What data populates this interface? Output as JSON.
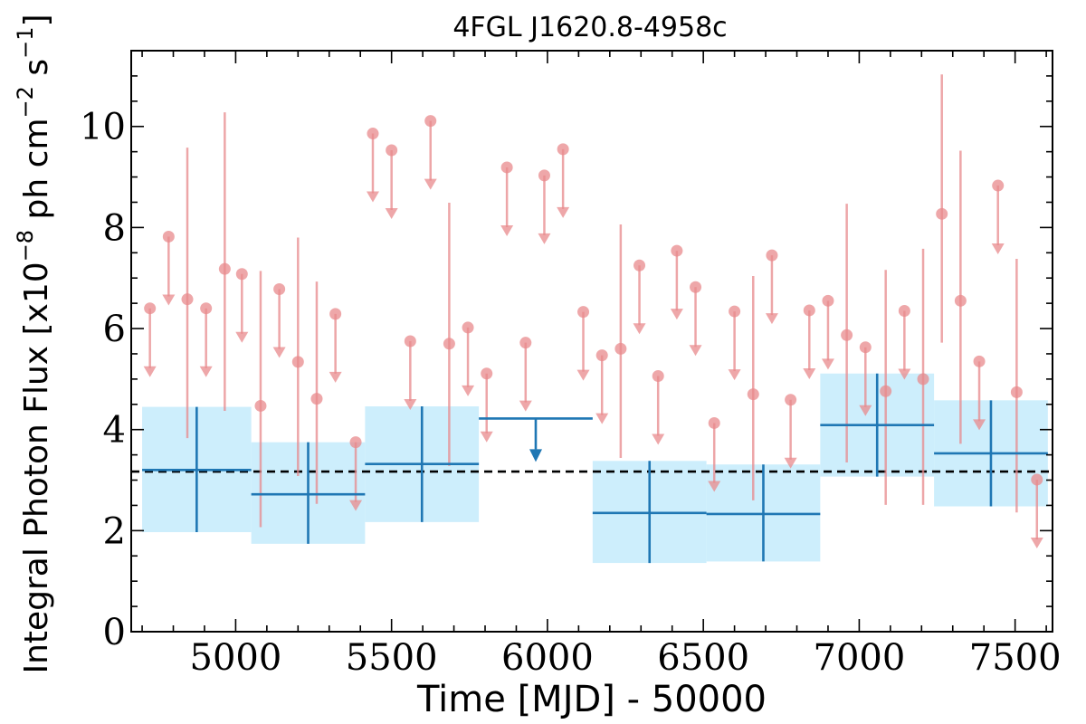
{
  "chart_data": {
    "type": "scatter",
    "title": "4FGL J1620.8-4958c",
    "xlabel": "Time [MJD] - 50000",
    "ylabel": "Integral Photon Flux [x10",
    "ylabel_exp": "−8",
    "ylabel_mid": " ph cm",
    "ylabel_exp2": "−2",
    "ylabel_end": " s",
    "ylabel_exp3": "−1",
    "ylabel_close": "]",
    "xlim": [
      4665,
      7620
    ],
    "ylim": [
      0,
      11.5
    ],
    "xticks": [
      5000,
      5500,
      6000,
      6500,
      7000,
      7500
    ],
    "yticks": [
      0,
      2,
      4,
      6,
      8,
      10
    ],
    "colors": {
      "short_bins": "#e8898c",
      "long_bins": "#1f77b4",
      "long_bins_band": "#cdeefc",
      "mean_line": "#000000"
    },
    "mean_flux": 3.17,
    "long_bins": [
      {
        "x0": 4700,
        "x1": 5050,
        "y": 3.2,
        "lo": 1.97,
        "hi": 4.45
      },
      {
        "x0": 5050,
        "x1": 5415,
        "y": 2.72,
        "lo": 1.74,
        "hi": 3.75
      },
      {
        "x0": 5415,
        "x1": 5780,
        "y": 3.32,
        "lo": 2.17,
        "hi": 4.46
      },
      {
        "x0": 5780,
        "x1": 6145,
        "y": 4.22,
        "ul": true
      },
      {
        "x0": 6145,
        "x1": 6510,
        "y": 2.35,
        "lo": 1.36,
        "hi": 3.38
      },
      {
        "x0": 6510,
        "x1": 6875,
        "y": 2.33,
        "lo": 1.39,
        "hi": 3.31
      },
      {
        "x0": 6875,
        "x1": 7240,
        "y": 4.09,
        "lo": 3.07,
        "hi": 5.11
      },
      {
        "x0": 7240,
        "x1": 7605,
        "y": 3.53,
        "lo": 2.48,
        "hi": 4.58
      }
    ],
    "short_bins": [
      {
        "x": 4725,
        "y": 6.4,
        "ul": true
      },
      {
        "x": 4785,
        "y": 7.82,
        "ul": true
      },
      {
        "x": 4845,
        "y": 6.58,
        "lo": 3.83,
        "hi": 9.58
      },
      {
        "x": 4905,
        "y": 6.4,
        "ul": true
      },
      {
        "x": 4965,
        "y": 7.18,
        "lo": 4.37,
        "hi": 10.28
      },
      {
        "x": 5020,
        "y": 7.08,
        "ul": true
      },
      {
        "x": 5080,
        "y": 4.47,
        "lo": 2.07,
        "hi": 7.14
      },
      {
        "x": 5140,
        "y": 6.78,
        "ul": true
      },
      {
        "x": 5200,
        "y": 5.34,
        "lo": 3.08,
        "hi": 7.8
      },
      {
        "x": 5260,
        "y": 4.61,
        "lo": 2.53,
        "hi": 6.93
      },
      {
        "x": 5320,
        "y": 6.29,
        "ul": true
      },
      {
        "x": 5385,
        "y": 3.75,
        "ul": true
      },
      {
        "x": 5440,
        "y": 9.86,
        "ul": true
      },
      {
        "x": 5500,
        "y": 9.53,
        "ul": true
      },
      {
        "x": 5560,
        "y": 5.75,
        "ul": true
      },
      {
        "x": 5625,
        "y": 10.11,
        "ul": true
      },
      {
        "x": 5685,
        "y": 5.7,
        "lo": 3.28,
        "hi": 8.49
      },
      {
        "x": 5745,
        "y": 6.02,
        "ul": true
      },
      {
        "x": 5805,
        "y": 5.11,
        "ul": true
      },
      {
        "x": 5870,
        "y": 9.19,
        "ul": true
      },
      {
        "x": 5930,
        "y": 5.72,
        "ul": true
      },
      {
        "x": 5990,
        "y": 9.03,
        "ul": true
      },
      {
        "x": 6050,
        "y": 9.55,
        "ul": true
      },
      {
        "x": 6115,
        "y": 6.33,
        "ul": true
      },
      {
        "x": 6175,
        "y": 5.47,
        "ul": true
      },
      {
        "x": 6235,
        "y": 5.6,
        "lo": 3.44,
        "hi": 8.06
      },
      {
        "x": 6295,
        "y": 7.25,
        "ul": true
      },
      {
        "x": 6355,
        "y": 5.06,
        "ul": true
      },
      {
        "x": 6415,
        "y": 7.54,
        "ul": true
      },
      {
        "x": 6475,
        "y": 6.82,
        "ul": true
      },
      {
        "x": 6535,
        "y": 4.13,
        "ul": true
      },
      {
        "x": 6600,
        "y": 6.34,
        "ul": true
      },
      {
        "x": 6660,
        "y": 4.7,
        "lo": 2.6,
        "hi": 7.04
      },
      {
        "x": 6720,
        "y": 7.45,
        "ul": true
      },
      {
        "x": 6780,
        "y": 4.59,
        "ul": true
      },
      {
        "x": 6840,
        "y": 6.36,
        "ul": true
      },
      {
        "x": 6900,
        "y": 6.55,
        "ul": true
      },
      {
        "x": 6960,
        "y": 5.87,
        "lo": 3.35,
        "hi": 8.47
      },
      {
        "x": 7020,
        "y": 5.63,
        "ul": true
      },
      {
        "x": 7085,
        "y": 4.76,
        "lo": 2.51,
        "hi": 7.16
      },
      {
        "x": 7145,
        "y": 6.35,
        "ul": true
      },
      {
        "x": 7205,
        "y": 5.0,
        "lo": 2.51,
        "hi": 7.58
      },
      {
        "x": 7265,
        "y": 8.27,
        "lo": 5.72,
        "hi": 11.03
      },
      {
        "x": 7325,
        "y": 6.55,
        "lo": 3.72,
        "hi": 9.52
      },
      {
        "x": 7385,
        "y": 5.35,
        "ul": true
      },
      {
        "x": 7445,
        "y": 8.83,
        "ul": true
      },
      {
        "x": 7505,
        "y": 4.74,
        "lo": 2.36,
        "hi": 7.38
      },
      {
        "x": 7570,
        "y": 3.01,
        "ul": true
      }
    ]
  }
}
